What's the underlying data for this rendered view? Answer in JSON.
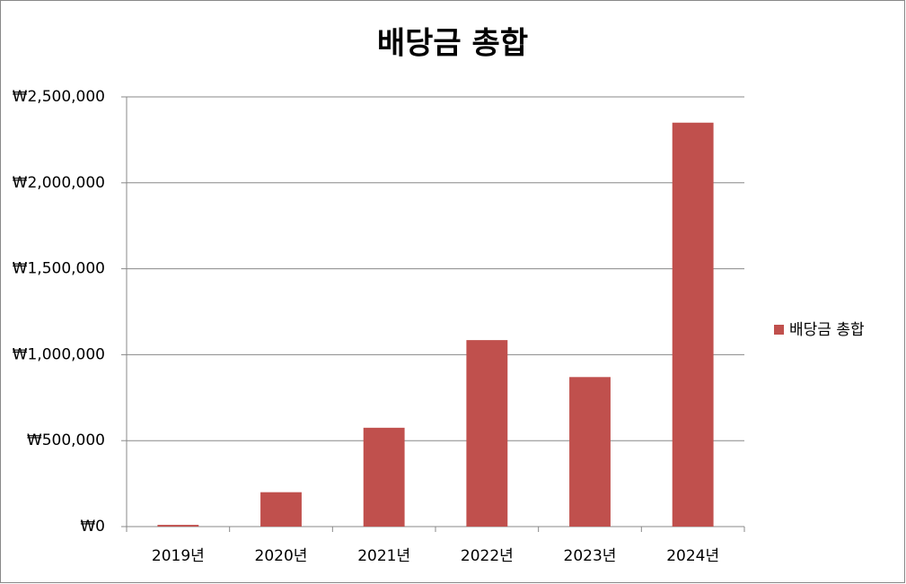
{
  "chart_data": {
    "type": "bar",
    "title": "배당금 총합",
    "categories": [
      "2019년",
      "2020년",
      "2021년",
      "2022년",
      "2023년",
      "2024년"
    ],
    "series": [
      {
        "name": "배당금 총합",
        "color": "#c0504d",
        "values": [
          10000,
          200000,
          575000,
          1085000,
          870000,
          2350000
        ]
      }
    ],
    "ylim": [
      0,
      2500000
    ],
    "yticks": [
      {
        "value": 0,
        "label": "₩0"
      },
      {
        "value": 500000,
        "label": "₩500,000"
      },
      {
        "value": 1000000,
        "label": "₩1,000,000"
      },
      {
        "value": 1500000,
        "label": "₩1,500,000"
      },
      {
        "value": 2000000,
        "label": "₩2,000,000"
      },
      {
        "value": 2500000,
        "label": "₩2,500,000"
      }
    ],
    "grid": true,
    "legend": "right"
  }
}
